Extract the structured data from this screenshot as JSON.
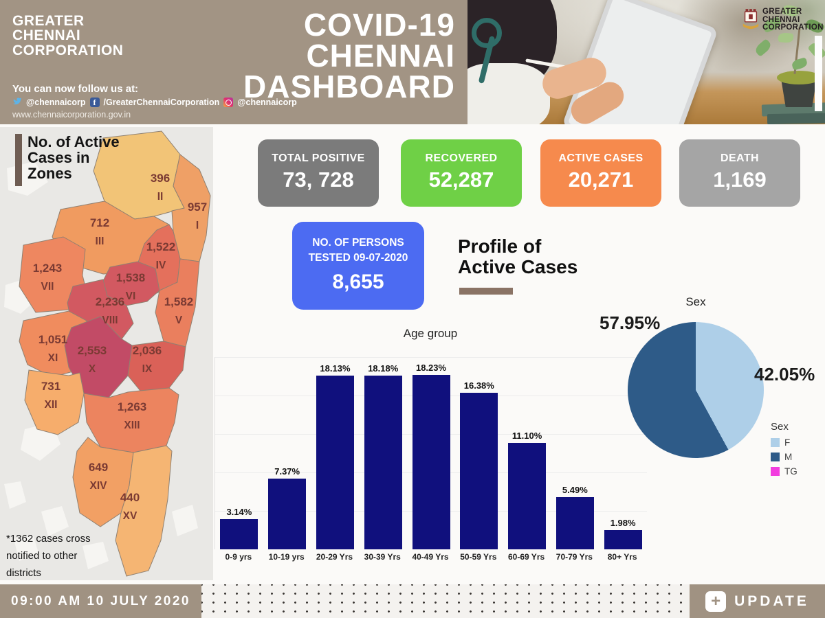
{
  "header": {
    "brand_lines": [
      "GREATER",
      "CHENNAI",
      "CORPORATION"
    ],
    "title_lines": [
      "COVID-19",
      "CHENNAI",
      "DASHBOARD"
    ],
    "follow_text": "You can now follow us at:",
    "social": {
      "twitter_handle": "@chennaicorp",
      "facebook_handle": "/GreaterChennaiCorporation",
      "instagram_handle": "@chennaicorp"
    },
    "website": "www.chennaicorporation.gov.in",
    "photo_logo_lines": [
      "GREATER",
      "CHENNAI",
      "CORPORATION"
    ]
  },
  "stats": [
    {
      "label": "TOTAL POSITIVE",
      "value": "73, 728",
      "color": "#7b7b7b"
    },
    {
      "label": "RECOVERED",
      "value": "52,287",
      "color": "#6fd046"
    },
    {
      "label": "ACTIVE CASES",
      "value": "20,271",
      "color": "#f68a4d"
    },
    {
      "label": "DEATH",
      "value": "1,169",
      "color": "#a5a5a5"
    }
  ],
  "tested": {
    "label_line1": "NO. OF PERSONS",
    "label_line2": "TESTED 09-07-2020",
    "value": "8,655",
    "color": "#4c6bf2"
  },
  "profile_title_lines": [
    "Profile of",
    "Active Cases"
  ],
  "map": {
    "heading_lines": [
      "No. of Active",
      "Cases in",
      "Zones"
    ],
    "note_lines": [
      "*1362 cases cross",
      "notified to other",
      "districts"
    ],
    "label_color": "#7a3a33",
    "zones": [
      {
        "numeral": "II",
        "value": "396",
        "color": "#f2c477"
      },
      {
        "numeral": "I",
        "value": "957",
        "color": "#efa066"
      },
      {
        "numeral": "III",
        "value": "712",
        "color": "#f09b60"
      },
      {
        "numeral": "IV",
        "value": "1,522",
        "color": "#e4705c"
      },
      {
        "numeral": "VII",
        "value": "1,243",
        "color": "#ee8760"
      },
      {
        "numeral": "VI",
        "value": "1,538",
        "color": "#d25961"
      },
      {
        "numeral": "VIII",
        "value": "2,236",
        "color": "#d25961"
      },
      {
        "numeral": "V",
        "value": "1,582",
        "color": "#ea7f5e"
      },
      {
        "numeral": "XI",
        "value": "1,051",
        "color": "#f08c5e"
      },
      {
        "numeral": "X",
        "value": "2,553",
        "color": "#c24b66"
      },
      {
        "numeral": "IX",
        "value": "2,036",
        "color": "#da6158"
      },
      {
        "numeral": "XII",
        "value": "731",
        "color": "#f6ad6c"
      },
      {
        "numeral": "XIII",
        "value": "1,263",
        "color": "#ec845f"
      },
      {
        "numeral": "XIV",
        "value": "649",
        "color": "#f2a064"
      },
      {
        "numeral": "XV",
        "value": "440",
        "color": "#f5b573"
      }
    ]
  },
  "chart_data": [
    {
      "type": "bar",
      "title": "Age group",
      "categories": [
        "0-9 yrs",
        "10-19 yrs",
        "20-29 Yrs",
        "30-39 Yrs",
        "40-49 Yrs",
        "50-59 Yrs",
        "60-69 Yrs",
        "70-79 Yrs",
        "80+ Yrs"
      ],
      "values": [
        3.14,
        7.37,
        18.13,
        18.18,
        18.23,
        16.38,
        11.1,
        5.49,
        1.98
      ],
      "value_labels": [
        "3.14%",
        "7.37%",
        "18.13%",
        "18.18%",
        "18.23%",
        "16.38%",
        "11.10%",
        "5.49%",
        "1.98%"
      ],
      "bar_color": "#10107d",
      "xlabel": "",
      "ylabel": "",
      "ylim": [
        0,
        20
      ],
      "grid": true
    },
    {
      "type": "pie",
      "title": "Sex",
      "legend_title": "Sex",
      "legend_position": "right",
      "slices": [
        {
          "label": "F",
          "pct": 42.05,
          "color": "#aecfe8",
          "callout": "42.05%"
        },
        {
          "label": "M",
          "pct": 57.95,
          "color": "#2e5b88",
          "callout": "57.95%"
        },
        {
          "label": "TG",
          "pct": 0,
          "color": "#f23ddf",
          "callout": ""
        }
      ]
    }
  ],
  "footer": {
    "timestamp": "09:00 AM 10 JULY 2020",
    "update_label": "UPDATE"
  }
}
